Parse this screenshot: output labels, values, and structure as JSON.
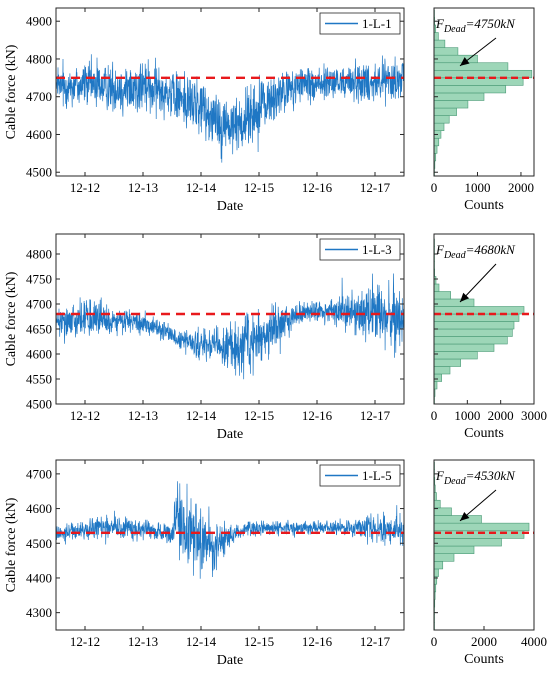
{
  "chart_data": [
    {
      "type": "line",
      "xlabel": "Date",
      "ylabel": "Cable force (kN)",
      "x_ticks": [
        "12-12",
        "12-13",
        "12-14",
        "12-15",
        "12-16",
        "12-17"
      ],
      "xlim": [
        0,
        6
      ],
      "ylim": [
        4490,
        4935
      ],
      "y_ticks": [
        4500,
        4600,
        4700,
        4800,
        4900
      ],
      "series": [
        {
          "name": "1-L-1",
          "color": "#1f77c4"
        }
      ],
      "profile": {
        "x": [
          0,
          0.3,
          0.6,
          0.9,
          1.2,
          1.5,
          1.8,
          2.1,
          2.4,
          2.7,
          3.0,
          3.3,
          3.6,
          3.9,
          4.2,
          4.5,
          4.8,
          5.1,
          5.4,
          5.7,
          6.0
        ],
        "mean": [
          4725,
          4730,
          4735,
          4725,
          4720,
          4725,
          4720,
          4700,
          4680,
          4650,
          4620,
          4640,
          4680,
          4710,
          4730,
          4735,
          4735,
          4740,
          4740,
          4745,
          4745
        ],
        "amp": [
          70,
          80,
          90,
          80,
          95,
          95,
          85,
          95,
          110,
          120,
          100,
          110,
          95,
          80,
          70,
          65,
          65,
          70,
          75,
          80,
          80
        ]
      },
      "dead_load": {
        "value": 4750,
        "color": "#e8191c"
      },
      "histogram": {
        "xlim": [
          0,
          2300
        ],
        "x_ticks": [
          0,
          1000,
          2000
        ],
        "xlabel": "Counts",
        "bin_edges": [
          4490,
          4510,
          4530,
          4550,
          4570,
          4590,
          4610,
          4630,
          4650,
          4670,
          4690,
          4710,
          4730,
          4750,
          4770,
          4790,
          4810,
          4830,
          4850,
          4870,
          4890,
          4910,
          4930
        ],
        "counts": [
          5,
          20,
          40,
          70,
          110,
          160,
          230,
          350,
          520,
          780,
          1150,
          1650,
          2050,
          2250,
          1700,
          1000,
          550,
          250,
          100,
          40,
          15,
          5
        ],
        "annotation": {
          "base": "F",
          "sub": "Dead",
          "rest": "=4750kN"
        }
      }
    },
    {
      "type": "line",
      "xlabel": "Date",
      "ylabel": "Cable force (kN)",
      "x_ticks": [
        "12-12",
        "12-13",
        "12-14",
        "12-15",
        "12-16",
        "12-17"
      ],
      "xlim": [
        0,
        6
      ],
      "ylim": [
        4500,
        4840
      ],
      "y_ticks": [
        4500,
        4550,
        4600,
        4650,
        4700,
        4750,
        4800
      ],
      "series": [
        {
          "name": "1-L-3",
          "color": "#1f77c4"
        }
      ],
      "profile": {
        "x": [
          0,
          0.3,
          0.6,
          0.9,
          1.2,
          1.5,
          1.8,
          2.1,
          2.4,
          2.7,
          3.0,
          3.3,
          3.6,
          3.9,
          4.2,
          4.5,
          4.8,
          5.1,
          5.4,
          5.7,
          6.0
        ],
        "mean": [
          4660,
          4670,
          4675,
          4665,
          4665,
          4660,
          4650,
          4630,
          4620,
          4615,
          4610,
          4620,
          4640,
          4665,
          4680,
          4685,
          4685,
          4690,
          4680,
          4675,
          4675
        ],
        "amp": [
          40,
          45,
          55,
          40,
          30,
          30,
          30,
          30,
          35,
          45,
          70,
          80,
          70,
          45,
          35,
          35,
          40,
          60,
          80,
          90,
          70
        ]
      },
      "dead_load": {
        "value": 4680,
        "color": "#e8191c"
      },
      "histogram": {
        "xlim": [
          0,
          3000
        ],
        "x_ticks": [
          0,
          1000,
          2000,
          3000
        ],
        "xlabel": "Counts",
        "bin_edges": [
          4500,
          4515,
          4530,
          4545,
          4560,
          4575,
          4590,
          4605,
          4620,
          4635,
          4650,
          4665,
          4680,
          4695,
          4710,
          4725,
          4740,
          4755,
          4770,
          4785,
          4800,
          4815,
          4830
        ],
        "counts": [
          10,
          30,
          90,
          230,
          480,
          800,
          1300,
          1800,
          2200,
          2350,
          2400,
          2550,
          2700,
          1200,
          500,
          150,
          60,
          20,
          10,
          5,
          3,
          2
        ],
        "annotation": {
          "base": "F",
          "sub": "Dead",
          "rest": "=4680kN"
        }
      }
    },
    {
      "type": "line",
      "xlabel": "Date",
      "ylabel": "Cable force (kN)",
      "x_ticks": [
        "12-12",
        "12-13",
        "12-14",
        "12-15",
        "12-16",
        "12-17"
      ],
      "xlim": [
        0,
        6
      ],
      "ylim": [
        4250,
        4740
      ],
      "y_ticks": [
        4300,
        4400,
        4500,
        4600,
        4700
      ],
      "series": [
        {
          "name": "1-L-5",
          "color": "#1f77c4"
        }
      ],
      "profile": {
        "x": [
          0,
          0.3,
          0.6,
          0.9,
          1.2,
          1.5,
          1.8,
          2.0,
          2.1,
          2.3,
          2.5,
          2.7,
          3.0,
          3.3,
          3.6,
          3.9,
          4.2,
          4.5,
          4.8,
          5.1,
          5.4,
          5.7,
          6.0
        ],
        "mean": [
          4530,
          4535,
          4540,
          4545,
          4545,
          4540,
          4535,
          4530,
          4580,
          4540,
          4500,
          4490,
          4520,
          4540,
          4545,
          4545,
          4545,
          4545,
          4545,
          4545,
          4545,
          4540,
          4535
        ],
        "amp": [
          25,
          35,
          45,
          45,
          45,
          40,
          35,
          40,
          140,
          150,
          140,
          100,
          45,
          30,
          30,
          25,
          25,
          25,
          25,
          35,
          45,
          55,
          60
        ]
      },
      "dead_load": {
        "value": 4530,
        "color": "#e8191c"
      },
      "histogram": {
        "xlim": [
          0,
          4000
        ],
        "x_ticks": [
          0,
          2000,
          4000
        ],
        "xlabel": "Counts",
        "bin_edges": [
          4250,
          4272,
          4294,
          4316,
          4338,
          4360,
          4382,
          4404,
          4426,
          4448,
          4470,
          4492,
          4514,
          4536,
          4558,
          4580,
          4602,
          4624,
          4646,
          4668,
          4690,
          4712,
          4734
        ],
        "counts": [
          5,
          10,
          20,
          30,
          45,
          70,
          110,
          180,
          350,
          800,
          1600,
          2700,
          3600,
          3800,
          1900,
          700,
          250,
          100,
          50,
          30,
          15,
          5
        ],
        "annotation": {
          "base": "F",
          "sub": "Dead",
          "rest": "=4530kN"
        }
      }
    }
  ]
}
